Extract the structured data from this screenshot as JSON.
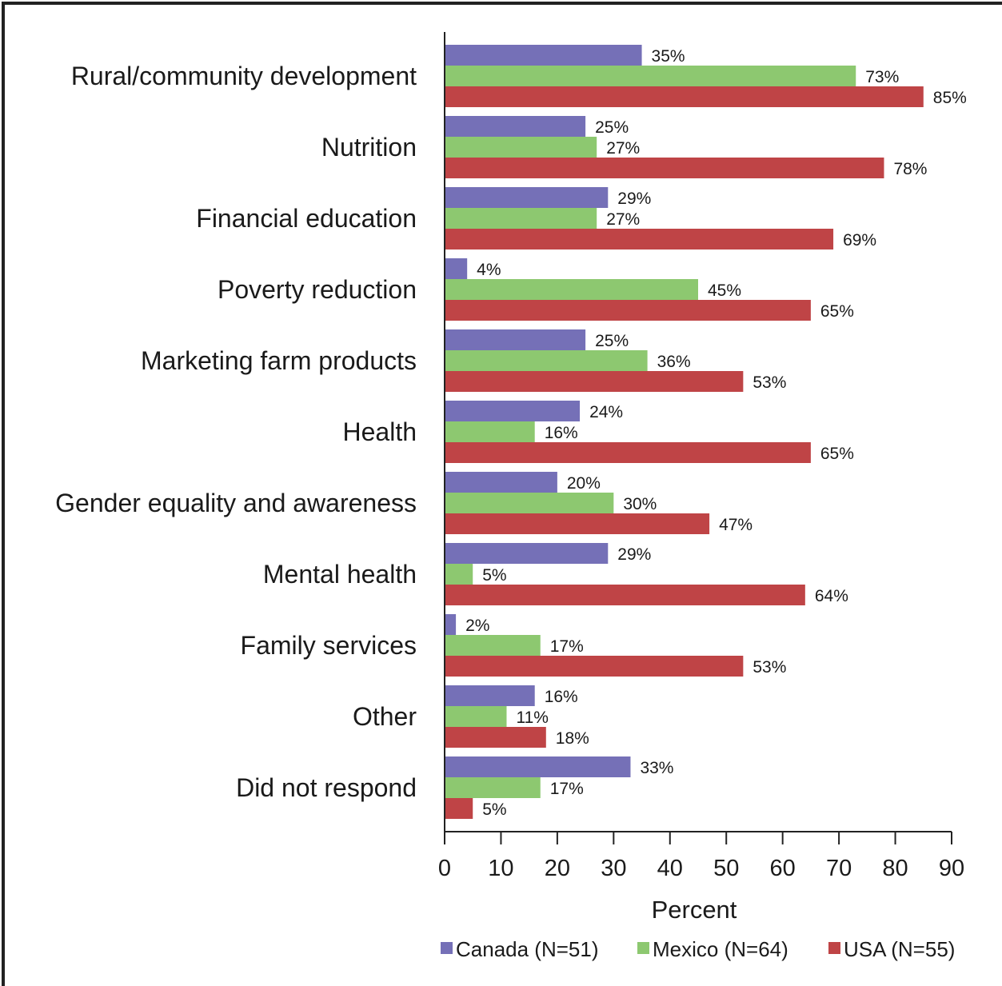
{
  "chart_data": {
    "type": "bar",
    "orientation": "horizontal",
    "categories": [
      "Rural/community development",
      "Nutrition",
      "Financial education",
      "Poverty reduction",
      "Marketing farm products",
      "Health",
      "Gender equality and awareness",
      "Mental health",
      "Family services",
      "Other",
      "Did not respond"
    ],
    "series": [
      {
        "name": "Canada (N=51)",
        "color": "#7570b7",
        "values": [
          35,
          25,
          29,
          4,
          25,
          24,
          20,
          29,
          2,
          16,
          33
        ]
      },
      {
        "name": "Mexico (N=64)",
        "color": "#8dc870",
        "values": [
          73,
          27,
          27,
          45,
          36,
          16,
          30,
          5,
          17,
          11,
          17
        ]
      },
      {
        "name": "USA (N=55)",
        "color": "#bf4446",
        "values": [
          85,
          78,
          69,
          65,
          53,
          65,
          47,
          64,
          53,
          18,
          5
        ]
      }
    ],
    "value_suffix": "%",
    "xlabel": "Percent",
    "xlim": [
      0,
      90
    ],
    "xticks": [
      0,
      10,
      20,
      30,
      40,
      50,
      60,
      70,
      80,
      90
    ],
    "grid": false,
    "legend_position": "bottom"
  }
}
